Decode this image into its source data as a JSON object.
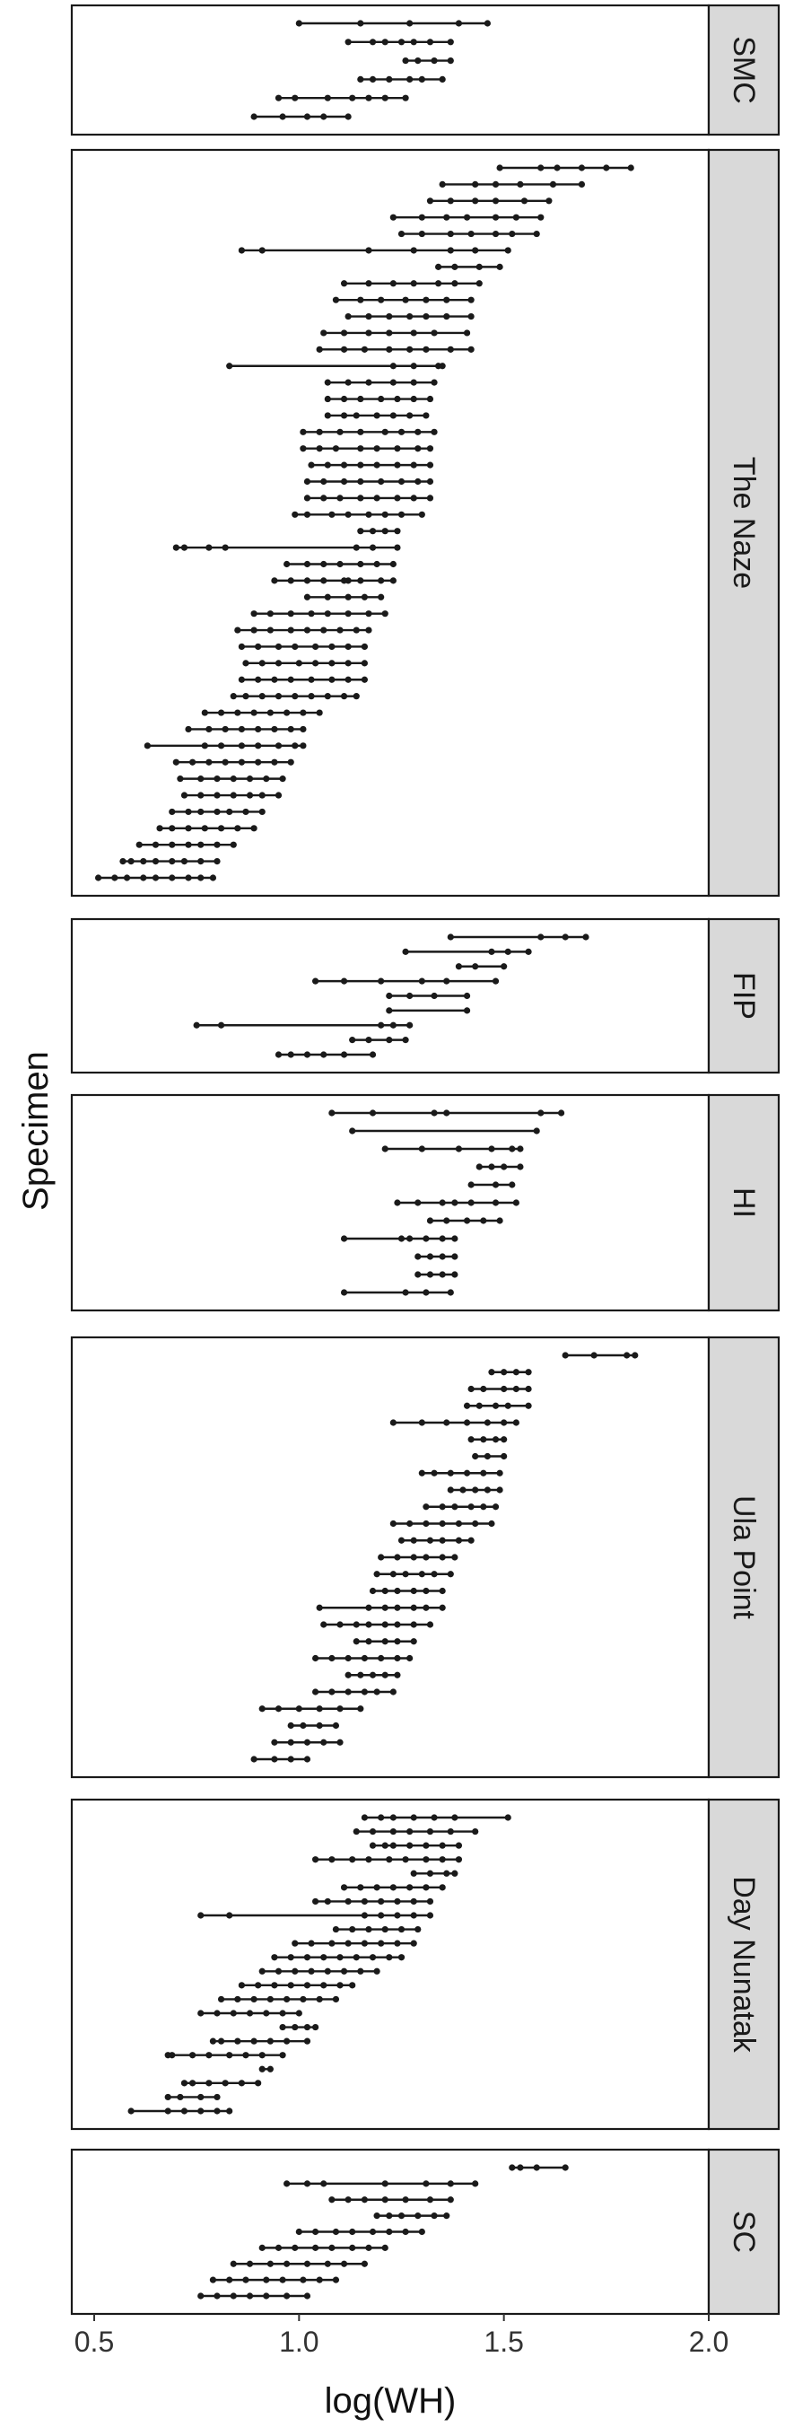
{
  "chart_data": {
    "type": "dot-range",
    "xlabel": "log(WH)",
    "ylabel": "Specimen",
    "xlim": [
      0.45,
      2.0
    ],
    "x_ticks": [
      0.5,
      1.0,
      1.5,
      2.0
    ],
    "x_tick_labels": [
      "0.5",
      "1.0",
      "1.5",
      "2.0"
    ],
    "panels": [
      {
        "label": "SMC",
        "rows": [
          [
            1.0,
            1.15,
            1.27,
            1.39,
            1.46
          ],
          [
            1.12,
            1.18,
            1.21,
            1.25,
            1.28,
            1.32,
            1.37
          ],
          [
            1.26,
            1.29,
            1.33,
            1.37
          ],
          [
            1.15,
            1.18,
            1.22,
            1.27,
            1.3,
            1.35
          ],
          [
            0.95,
            0.99,
            1.07,
            1.13,
            1.17,
            1.21,
            1.26
          ],
          [
            0.89,
            0.96,
            1.02,
            1.06,
            1.12
          ]
        ]
      },
      {
        "label": "The Naze",
        "rows": [
          [
            1.49,
            1.59,
            1.63,
            1.69,
            1.75,
            1.81
          ],
          [
            1.35,
            1.43,
            1.48,
            1.54,
            1.62,
            1.69
          ],
          [
            1.32,
            1.37,
            1.43,
            1.48,
            1.55,
            1.61
          ],
          [
            1.23,
            1.3,
            1.36,
            1.41,
            1.48,
            1.53,
            1.59
          ],
          [
            1.25,
            1.3,
            1.37,
            1.42,
            1.48,
            1.52,
            1.58
          ],
          [
            0.86,
            0.91,
            1.17,
            1.28,
            1.37,
            1.43,
            1.51
          ],
          [
            1.34,
            1.38,
            1.44,
            1.49
          ],
          [
            1.11,
            1.17,
            1.23,
            1.28,
            1.34,
            1.38,
            1.44
          ],
          [
            1.09,
            1.15,
            1.2,
            1.26,
            1.31,
            1.36,
            1.42
          ],
          [
            1.12,
            1.17,
            1.22,
            1.27,
            1.31,
            1.36,
            1.42
          ],
          [
            1.06,
            1.11,
            1.17,
            1.22,
            1.28,
            1.33,
            1.41
          ],
          [
            1.05,
            1.11,
            1.16,
            1.22,
            1.27,
            1.31,
            1.37,
            1.42
          ],
          [
            0.83,
            1.23,
            1.28,
            1.34,
            1.35
          ],
          [
            1.07,
            1.12,
            1.17,
            1.23,
            1.28,
            1.33
          ],
          [
            1.07,
            1.11,
            1.15,
            1.2,
            1.24,
            1.28,
            1.32
          ],
          [
            1.07,
            1.11,
            1.14,
            1.19,
            1.23,
            1.27,
            1.31
          ],
          [
            1.01,
            1.05,
            1.1,
            1.15,
            1.21,
            1.25,
            1.29,
            1.33
          ],
          [
            1.01,
            1.05,
            1.09,
            1.15,
            1.19,
            1.24,
            1.29,
            1.32
          ],
          [
            1.03,
            1.07,
            1.11,
            1.15,
            1.19,
            1.24,
            1.28,
            1.32
          ],
          [
            1.02,
            1.06,
            1.11,
            1.15,
            1.2,
            1.25,
            1.29,
            1.32
          ],
          [
            1.02,
            1.06,
            1.1,
            1.15,
            1.19,
            1.24,
            1.28,
            1.32
          ],
          [
            0.99,
            1.02,
            1.08,
            1.12,
            1.17,
            1.21,
            1.25,
            1.3
          ],
          [
            1.15,
            1.18,
            1.21,
            1.24
          ],
          [
            0.7,
            0.72,
            0.78,
            0.82,
            1.14,
            1.18,
            1.24
          ],
          [
            0.97,
            1.02,
            1.06,
            1.1,
            1.15,
            1.19,
            1.23
          ],
          [
            0.94,
            0.98,
            1.02,
            1.06,
            1.11,
            1.12,
            1.15,
            1.2,
            1.23
          ],
          [
            1.02,
            1.07,
            1.12,
            1.16,
            1.2
          ],
          [
            0.89,
            0.93,
            0.98,
            1.03,
            1.07,
            1.12,
            1.17,
            1.21
          ],
          [
            0.85,
            0.89,
            0.93,
            0.98,
            1.02,
            1.06,
            1.1,
            1.14,
            1.17
          ],
          [
            0.86,
            0.9,
            0.95,
            0.99,
            1.04,
            1.08,
            1.12,
            1.16
          ],
          [
            0.87,
            0.91,
            0.95,
            1.0,
            1.04,
            1.08,
            1.12,
            1.16
          ],
          [
            0.86,
            0.9,
            0.94,
            0.98,
            1.03,
            1.08,
            1.12,
            1.16
          ],
          [
            0.84,
            0.87,
            0.91,
            0.95,
            0.99,
            1.03,
            1.07,
            1.11,
            1.14
          ],
          [
            0.77,
            0.81,
            0.85,
            0.89,
            0.93,
            0.97,
            1.01,
            1.05
          ],
          [
            0.73,
            0.78,
            0.82,
            0.86,
            0.9,
            0.94,
            0.98,
            1.01
          ],
          [
            0.63,
            0.77,
            0.81,
            0.86,
            0.9,
            0.95,
            0.99,
            1.01
          ],
          [
            0.7,
            0.74,
            0.78,
            0.82,
            0.86,
            0.9,
            0.94,
            0.98
          ],
          [
            0.71,
            0.76,
            0.8,
            0.84,
            0.88,
            0.92,
            0.96
          ],
          [
            0.72,
            0.76,
            0.8,
            0.84,
            0.88,
            0.91,
            0.95
          ],
          [
            0.69,
            0.73,
            0.76,
            0.8,
            0.83,
            0.87,
            0.91
          ],
          [
            0.66,
            0.69,
            0.73,
            0.77,
            0.81,
            0.85,
            0.89
          ],
          [
            0.61,
            0.65,
            0.69,
            0.73,
            0.76,
            0.8,
            0.84
          ],
          [
            0.57,
            0.59,
            0.62,
            0.65,
            0.69,
            0.72,
            0.76,
            0.8
          ],
          [
            0.51,
            0.55,
            0.58,
            0.62,
            0.65,
            0.69,
            0.73,
            0.76,
            0.79
          ]
        ]
      },
      {
        "label": "FIP",
        "rows": [
          [
            1.37,
            1.59,
            1.65,
            1.7
          ],
          [
            1.26,
            1.47,
            1.51,
            1.56
          ],
          [
            1.39,
            1.43,
            1.5
          ],
          [
            1.04,
            1.11,
            1.2,
            1.3,
            1.36,
            1.48
          ],
          [
            1.22,
            1.27,
            1.33,
            1.41
          ],
          [
            1.22,
            1.41
          ],
          [
            0.75,
            0.81,
            1.2,
            1.23,
            1.27
          ],
          [
            1.13,
            1.17,
            1.22,
            1.26
          ],
          [
            0.95,
            0.98,
            1.02,
            1.06,
            1.11,
            1.18
          ]
        ]
      },
      {
        "label": "HI",
        "rows": [
          [
            1.08,
            1.18,
            1.33,
            1.36,
            1.59,
            1.64
          ],
          [
            1.13,
            1.58
          ],
          [
            1.21,
            1.3,
            1.39,
            1.47,
            1.52,
            1.54
          ],
          [
            1.44,
            1.47,
            1.5,
            1.54
          ],
          [
            1.42,
            1.48,
            1.52
          ],
          [
            1.24,
            1.29,
            1.35,
            1.38,
            1.42,
            1.48,
            1.53
          ],
          [
            1.32,
            1.36,
            1.41,
            1.45,
            1.49
          ],
          [
            1.11,
            1.25,
            1.27,
            1.31,
            1.35,
            1.38
          ],
          [
            1.29,
            1.32,
            1.35,
            1.38
          ],
          [
            1.29,
            1.32,
            1.35,
            1.38
          ],
          [
            1.11,
            1.26,
            1.31,
            1.37
          ]
        ]
      },
      {
        "label": "Ula Point",
        "rows": [
          [
            1.65,
            1.72,
            1.8,
            1.82
          ],
          [
            1.47,
            1.5,
            1.53,
            1.56
          ],
          [
            1.42,
            1.45,
            1.5,
            1.53,
            1.56
          ],
          [
            1.41,
            1.44,
            1.48,
            1.51,
            1.56
          ],
          [
            1.23,
            1.3,
            1.36,
            1.41,
            1.46,
            1.5,
            1.53
          ],
          [
            1.42,
            1.45,
            1.48,
            1.5
          ],
          [
            1.43,
            1.46,
            1.5
          ],
          [
            1.3,
            1.33,
            1.37,
            1.41,
            1.45,
            1.49
          ],
          [
            1.37,
            1.4,
            1.43,
            1.46,
            1.49
          ],
          [
            1.31,
            1.35,
            1.38,
            1.42,
            1.45,
            1.48
          ],
          [
            1.23,
            1.27,
            1.31,
            1.35,
            1.39,
            1.43,
            1.47
          ],
          [
            1.25,
            1.28,
            1.32,
            1.35,
            1.39,
            1.42
          ],
          [
            1.2,
            1.24,
            1.28,
            1.31,
            1.35,
            1.38
          ],
          [
            1.19,
            1.23,
            1.26,
            1.3,
            1.33,
            1.37
          ],
          [
            1.18,
            1.21,
            1.24,
            1.28,
            1.31,
            1.35
          ],
          [
            1.05,
            1.17,
            1.21,
            1.24,
            1.28,
            1.31,
            1.35
          ],
          [
            1.06,
            1.1,
            1.14,
            1.17,
            1.21,
            1.24,
            1.28,
            1.32
          ],
          [
            1.14,
            1.17,
            1.21,
            1.24,
            1.28
          ],
          [
            1.04,
            1.08,
            1.12,
            1.16,
            1.2,
            1.24,
            1.27
          ],
          [
            1.12,
            1.15,
            1.18,
            1.21,
            1.24
          ],
          [
            1.04,
            1.08,
            1.12,
            1.16,
            1.19,
            1.23
          ],
          [
            0.91,
            0.95,
            1.0,
            1.05,
            1.1,
            1.15
          ],
          [
            0.98,
            1.01,
            1.05,
            1.09
          ],
          [
            0.94,
            0.98,
            1.02,
            1.06,
            1.1
          ],
          [
            0.89,
            0.94,
            0.98,
            1.02
          ]
        ]
      },
      {
        "label": "Day Nunatak",
        "rows": [
          [
            1.16,
            1.2,
            1.23,
            1.28,
            1.33,
            1.38,
            1.51
          ],
          [
            1.14,
            1.18,
            1.23,
            1.27,
            1.32,
            1.37,
            1.43
          ],
          [
            1.18,
            1.21,
            1.23,
            1.27,
            1.31,
            1.35,
            1.39
          ],
          [
            1.04,
            1.08,
            1.13,
            1.17,
            1.22,
            1.26,
            1.31,
            1.35,
            1.39
          ],
          [
            1.28,
            1.32,
            1.36,
            1.38
          ],
          [
            1.11,
            1.15,
            1.19,
            1.23,
            1.27,
            1.31,
            1.35
          ],
          [
            1.04,
            1.07,
            1.12,
            1.16,
            1.2,
            1.24,
            1.28,
            1.32
          ],
          [
            0.76,
            0.83,
            1.16,
            1.2,
            1.24,
            1.28,
            1.32
          ],
          [
            1.09,
            1.13,
            1.17,
            1.21,
            1.25,
            1.29
          ],
          [
            0.99,
            1.03,
            1.08,
            1.12,
            1.16,
            1.2,
            1.24,
            1.28
          ],
          [
            0.94,
            0.98,
            1.02,
            1.06,
            1.1,
            1.14,
            1.18,
            1.22,
            1.25
          ],
          [
            0.91,
            0.95,
            0.99,
            1.03,
            1.07,
            1.11,
            1.15,
            1.19
          ],
          [
            0.86,
            0.9,
            0.94,
            0.98,
            1.02,
            1.06,
            1.1,
            1.13
          ],
          [
            0.81,
            0.85,
            0.89,
            0.93,
            0.97,
            1.01,
            1.05,
            1.09
          ],
          [
            0.76,
            0.8,
            0.84,
            0.88,
            0.92,
            0.96,
            1.0
          ],
          [
            0.96,
            0.99,
            1.02,
            1.04
          ],
          [
            0.79,
            0.81,
            0.85,
            0.89,
            0.93,
            0.97,
            1.02
          ],
          [
            0.68,
            0.69,
            0.74,
            0.78,
            0.83,
            0.87,
            0.91,
            0.96
          ],
          [
            0.91,
            0.93
          ],
          [
            0.72,
            0.74,
            0.78,
            0.82,
            0.86,
            0.9
          ],
          [
            0.68,
            0.71,
            0.76,
            0.8
          ],
          [
            0.59,
            0.68,
            0.72,
            0.76,
            0.8,
            0.83
          ]
        ]
      },
      {
        "label": "SC",
        "rows": [
          [
            1.52,
            1.54,
            1.58,
            1.65
          ],
          [
            0.97,
            1.02,
            1.06,
            1.21,
            1.31,
            1.37,
            1.43
          ],
          [
            1.08,
            1.12,
            1.16,
            1.21,
            1.26,
            1.32,
            1.37
          ],
          [
            1.19,
            1.22,
            1.25,
            1.29,
            1.33,
            1.36
          ],
          [
            1.0,
            1.04,
            1.09,
            1.13,
            1.18,
            1.22,
            1.26,
            1.3
          ],
          [
            0.91,
            0.95,
            0.99,
            1.04,
            1.08,
            1.13,
            1.17,
            1.21
          ],
          [
            0.84,
            0.88,
            0.93,
            0.97,
            1.02,
            1.07,
            1.11,
            1.16
          ],
          [
            0.79,
            0.83,
            0.87,
            0.92,
            0.96,
            1.01,
            1.05,
            1.09
          ],
          [
            0.76,
            0.8,
            0.84,
            0.88,
            0.92,
            0.97,
            1.02
          ]
        ]
      }
    ]
  }
}
